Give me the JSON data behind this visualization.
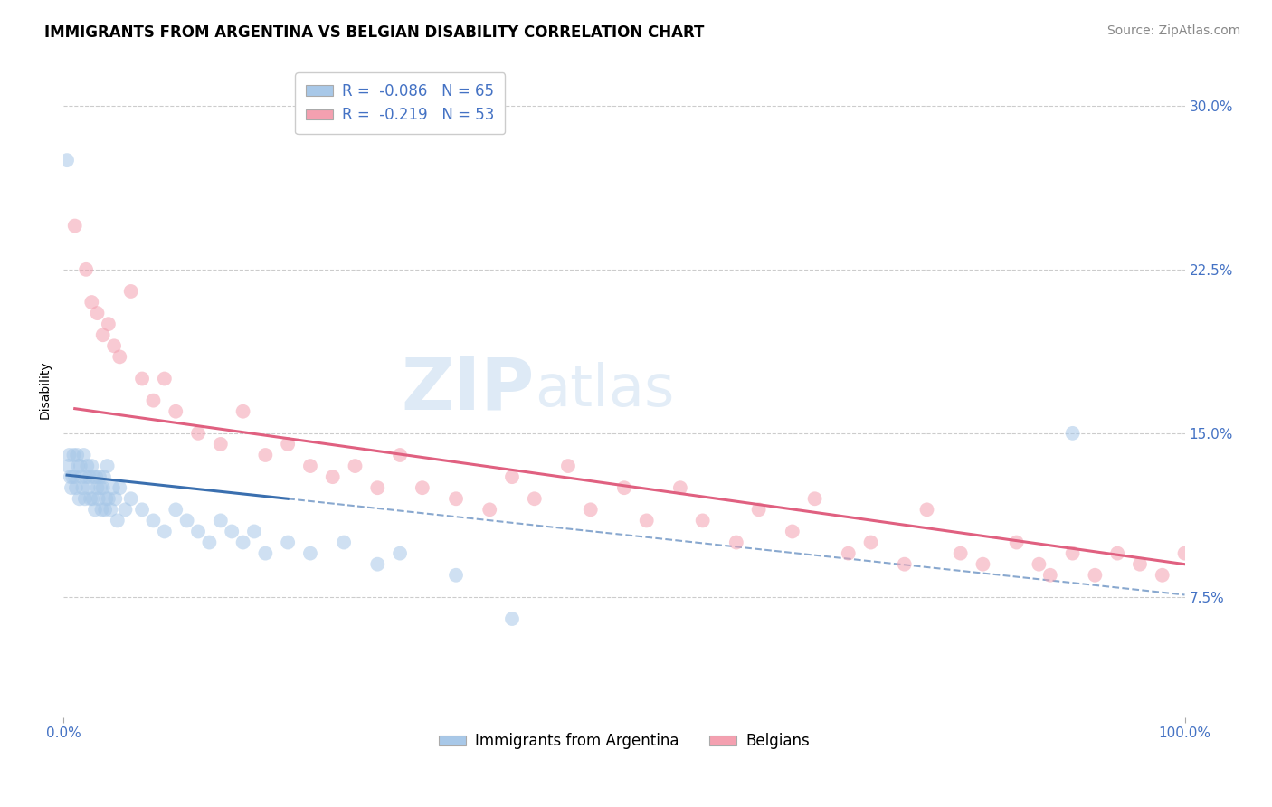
{
  "title": "IMMIGRANTS FROM ARGENTINA VS BELGIAN DISABILITY CORRELATION CHART",
  "source_text": "Source: ZipAtlas.com",
  "ylabel": "Disability",
  "watermark_zip": "ZIP",
  "watermark_atlas": "atlas",
  "xlim": [
    0.0,
    100.0
  ],
  "ylim": [
    2.0,
    32.0
  ],
  "yticks": [
    7.5,
    15.0,
    22.5,
    30.0
  ],
  "legend_r_blue": "-0.086",
  "legend_n_blue": "65",
  "legend_r_pink": "-0.219",
  "legend_n_pink": "53",
  "legend_label_blue": "Immigrants from Argentina",
  "legend_label_pink": "Belgians",
  "blue_dot_color": "#a8c8e8",
  "pink_dot_color": "#f4a0b0",
  "blue_line_color": "#3a6faf",
  "pink_line_color": "#e06080",
  "blue_scatter_x": [
    0.3,
    0.4,
    0.5,
    0.6,
    0.7,
    0.8,
    0.9,
    1.0,
    1.1,
    1.2,
    1.3,
    1.4,
    1.5,
    1.6,
    1.7,
    1.8,
    1.9,
    2.0,
    2.1,
    2.2,
    2.3,
    2.4,
    2.5,
    2.6,
    2.7,
    2.8,
    2.9,
    3.0,
    3.1,
    3.2,
    3.3,
    3.4,
    3.5,
    3.6,
    3.7,
    3.8,
    3.9,
    4.0,
    4.2,
    4.4,
    4.6,
    4.8,
    5.0,
    5.5,
    6.0,
    7.0,
    8.0,
    9.0,
    10.0,
    11.0,
    12.0,
    13.0,
    14.0,
    15.0,
    16.0,
    17.0,
    18.0,
    20.0,
    22.0,
    25.0,
    28.0,
    30.0,
    35.0,
    40.0,
    90.0
  ],
  "blue_scatter_y": [
    27.5,
    13.5,
    14.0,
    13.0,
    12.5,
    13.0,
    14.0,
    13.0,
    12.5,
    14.0,
    13.5,
    12.0,
    13.5,
    13.0,
    12.5,
    14.0,
    12.0,
    13.0,
    13.5,
    12.5,
    13.0,
    12.0,
    13.5,
    12.0,
    13.0,
    11.5,
    13.0,
    12.5,
    12.0,
    13.0,
    12.5,
    11.5,
    12.5,
    13.0,
    11.5,
    12.0,
    13.5,
    12.0,
    11.5,
    12.5,
    12.0,
    11.0,
    12.5,
    11.5,
    12.0,
    11.5,
    11.0,
    10.5,
    11.5,
    11.0,
    10.5,
    10.0,
    11.0,
    10.5,
    10.0,
    10.5,
    9.5,
    10.0,
    9.5,
    10.0,
    9.0,
    9.5,
    8.5,
    6.5,
    15.0
  ],
  "pink_scatter_x": [
    1.0,
    2.0,
    2.5,
    3.0,
    3.5,
    4.0,
    4.5,
    5.0,
    6.0,
    7.0,
    8.0,
    9.0,
    10.0,
    12.0,
    14.0,
    16.0,
    18.0,
    20.0,
    22.0,
    24.0,
    26.0,
    28.0,
    30.0,
    32.0,
    35.0,
    38.0,
    40.0,
    42.0,
    45.0,
    47.0,
    50.0,
    52.0,
    55.0,
    57.0,
    60.0,
    62.0,
    65.0,
    67.0,
    70.0,
    72.0,
    75.0,
    77.0,
    80.0,
    82.0,
    85.0,
    87.0,
    88.0,
    90.0,
    92.0,
    94.0,
    96.0,
    98.0,
    100.0
  ],
  "pink_scatter_y": [
    24.5,
    22.5,
    21.0,
    20.5,
    19.5,
    20.0,
    19.0,
    18.5,
    21.5,
    17.5,
    16.5,
    17.5,
    16.0,
    15.0,
    14.5,
    16.0,
    14.0,
    14.5,
    13.5,
    13.0,
    13.5,
    12.5,
    14.0,
    12.5,
    12.0,
    11.5,
    13.0,
    12.0,
    13.5,
    11.5,
    12.5,
    11.0,
    12.5,
    11.0,
    10.0,
    11.5,
    10.5,
    12.0,
    9.5,
    10.0,
    9.0,
    11.5,
    9.5,
    9.0,
    10.0,
    9.0,
    8.5,
    9.5,
    8.5,
    9.5,
    9.0,
    8.5,
    9.5
  ],
  "grid_color": "#cccccc",
  "background_color": "#ffffff",
  "title_fontsize": 12,
  "axis_label_fontsize": 10,
  "tick_fontsize": 11,
  "legend_fontsize": 12,
  "source_fontsize": 10,
  "blue_line_x_start": 0.3,
  "blue_line_x_end": 20.0,
  "pink_line_x_start": 1.0,
  "pink_line_x_end": 100.0,
  "blue_intercept": 13.1,
  "blue_slope": -0.055,
  "pink_intercept": 16.2,
  "pink_slope": -0.072
}
